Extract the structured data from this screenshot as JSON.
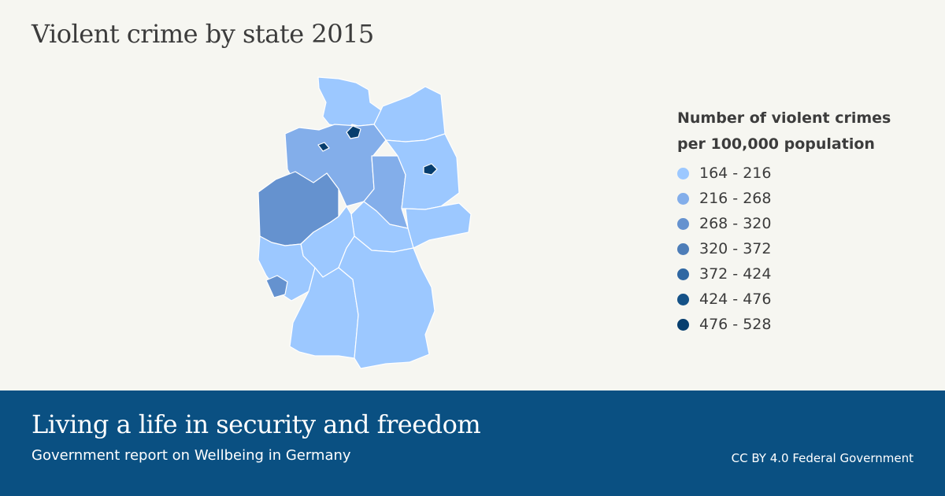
{
  "title": "Violent crime by state 2015",
  "legend": {
    "title_line1": "Number of violent crimes",
    "title_line2": "per 100,000 population",
    "classes": [
      {
        "label": "164 - 216",
        "color": "#9cc8ff"
      },
      {
        "label": "216 - 268",
        "color": "#83aeea"
      },
      {
        "label": "268 - 320",
        "color": "#6592cf"
      },
      {
        "label": "320 - 372",
        "color": "#4d7db8"
      },
      {
        "label": "372 - 424",
        "color": "#2f67a2"
      },
      {
        "label": "424 - 476",
        "color": "#155287"
      },
      {
        "label": "476 - 528",
        "color": "#073e6e"
      }
    ]
  },
  "map": {
    "regions": [
      {
        "key": "schleswig-holstein",
        "class_index": 0
      },
      {
        "key": "mecklenburg-vorpommern",
        "class_index": 0
      },
      {
        "key": "lower-saxony",
        "class_index": 1
      },
      {
        "key": "saxony-anhalt",
        "class_index": 1
      },
      {
        "key": "north-rhine-westphalia",
        "class_index": 2
      },
      {
        "key": "brandenburg",
        "class_index": 0
      },
      {
        "key": "saxony",
        "class_index": 0
      },
      {
        "key": "thuringia",
        "class_index": 0
      },
      {
        "key": "hesse",
        "class_index": 0
      },
      {
        "key": "rhineland-palatinate",
        "class_index": 0
      },
      {
        "key": "saarland",
        "class_index": 2
      },
      {
        "key": "baden-wuerttemberg",
        "class_index": 0
      },
      {
        "key": "bavaria",
        "class_index": 0
      },
      {
        "key": "hamburg",
        "class_index": 6
      },
      {
        "key": "bremen",
        "class_index": 6
      },
      {
        "key": "berlin",
        "class_index": 6
      }
    ]
  },
  "footer": {
    "title": "Living a life in security and freedom",
    "subtitle": "Government report on Wellbeing in Germany",
    "credit": "CC BY 4.0 Federal Government"
  }
}
